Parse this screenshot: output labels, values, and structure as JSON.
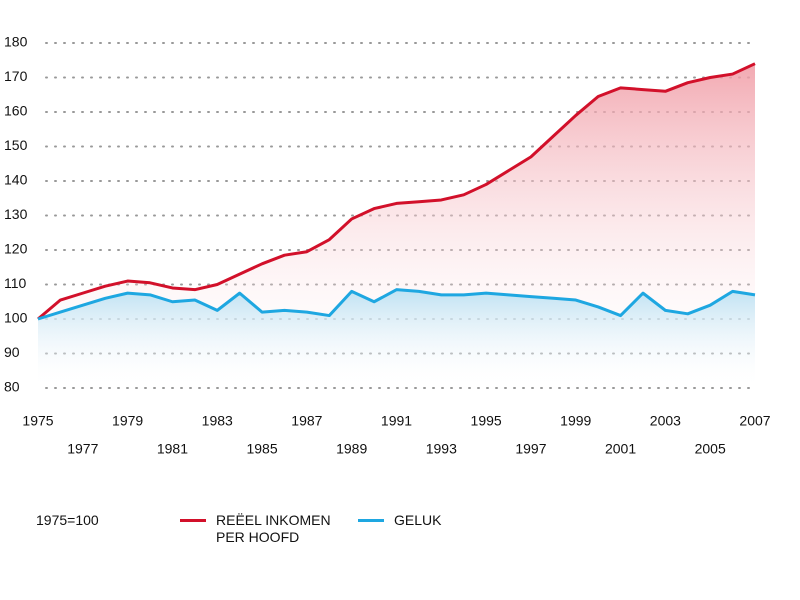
{
  "chart_data": {
    "type": "line",
    "x": [
      1975,
      1976,
      1977,
      1978,
      1979,
      1980,
      1981,
      1982,
      1983,
      1984,
      1985,
      1986,
      1987,
      1988,
      1989,
      1990,
      1991,
      1992,
      1993,
      1994,
      1995,
      1996,
      1997,
      1998,
      1999,
      2000,
      2001,
      2002,
      2003,
      2004,
      2005,
      2006,
      2007
    ],
    "series": [
      {
        "name": "REËEL INKOMEN PER HOOFD",
        "color": "#d2102a",
        "values": [
          100,
          105.5,
          107.5,
          109.5,
          111,
          110.5,
          109,
          108.5,
          110,
          113,
          116,
          118.5,
          119.5,
          123,
          129,
          132,
          133.5,
          134,
          134.5,
          136,
          139,
          143,
          147,
          153,
          159,
          164.5,
          167,
          166.5,
          166,
          168.5,
          170,
          171,
          174
        ]
      },
      {
        "name": "GELUK",
        "color": "#1ea7e1",
        "values": [
          100,
          102,
          104,
          106,
          107.5,
          107,
          105,
          105.5,
          102.5,
          107.5,
          102,
          102.5,
          102,
          101,
          108,
          105,
          108.5,
          108,
          107,
          107,
          107.5,
          107,
          106.5,
          106,
          105.5,
          103.5,
          101,
          107.5,
          102.5,
          101.5,
          104,
          108,
          107
        ]
      }
    ],
    "xlim": [
      1975,
      2007
    ],
    "xticks": [
      1975,
      1977,
      1979,
      1981,
      1983,
      1985,
      1987,
      1989,
      1991,
      1993,
      1995,
      1997,
      1999,
      2001,
      2003,
      2005,
      2007
    ],
    "ylim": [
      80,
      180
    ],
    "yticks": [
      80,
      90,
      100,
      110,
      120,
      130,
      140,
      150,
      160,
      170,
      180
    ],
    "grid": true,
    "annotation": "1975=100"
  }
}
